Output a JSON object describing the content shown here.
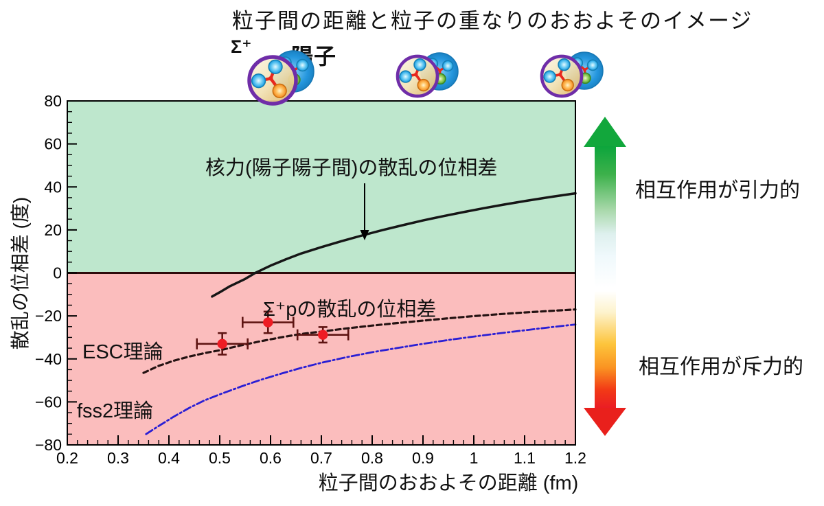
{
  "page": {
    "title": "粒子間の距離と粒子の重なりのおおよそのイメージ"
  },
  "header": {
    "sigma_label": "Σ⁺",
    "proton_label": "陽子",
    "particle_pairs": [
      "large-overlap",
      "medium-overlap",
      "small-overlap"
    ]
  },
  "right_panel": {
    "attractive_label": "相互作用が引力的",
    "repulsive_label": "相互作用が斥力的",
    "attractive_arrow_color": "#12a73c",
    "repulsive_arrow_color": "#e9201c"
  },
  "annotations": {
    "nuclear_curve": "核力(陽子陽子間)の散乱の位相差",
    "sigma_p_points": "Σ⁺pの散乱の位相差",
    "esc_theory": "ESC理論",
    "fss2_theory": "fss2理論"
  },
  "chart_data": {
    "type": "line",
    "xlabel": "粒子間のおおよその距離 (fm)",
    "ylabel": "散乱の位相差 (度)",
    "xlim": [
      0.2,
      1.2
    ],
    "ylim": [
      -80,
      80
    ],
    "x_minor_step": 0.02,
    "y_minor_step": 5,
    "grid": false,
    "x_ticks": [
      {
        "v": 0.2,
        "label": "0.2"
      },
      {
        "v": 0.3,
        "label": "0.3"
      },
      {
        "v": 0.4,
        "label": "0.4"
      },
      {
        "v": 0.5,
        "label": "0.5"
      },
      {
        "v": 0.6,
        "label": "0.6"
      },
      {
        "v": 0.7,
        "label": "0.7"
      },
      {
        "v": 0.8,
        "label": "0.8"
      },
      {
        "v": 0.9,
        "label": "0.9"
      },
      {
        "v": 1.0,
        "label": "1"
      },
      {
        "v": 1.1,
        "label": "1.1"
      },
      {
        "v": 1.2,
        "label": "1.2"
      }
    ],
    "y_ticks": [
      {
        "v": 80,
        "label": "80"
      },
      {
        "v": 60,
        "label": "60"
      },
      {
        "v": 40,
        "label": "40"
      },
      {
        "v": 20,
        "label": "20"
      },
      {
        "v": 0,
        "label": "0"
      },
      {
        "v": -20,
        "label": "−20"
      },
      {
        "v": -40,
        "label": "−40"
      },
      {
        "v": -60,
        "label": "−60"
      },
      {
        "v": -80,
        "label": "−80"
      }
    ],
    "regions": [
      {
        "name": "attractive-zone",
        "from": 0,
        "to": 80,
        "color": "#bee7cd"
      },
      {
        "name": "repulsive-zone",
        "from": -80,
        "to": 0,
        "color": "#fbbdbd"
      }
    ],
    "zero_line_color": "#2e0b0b",
    "series": [
      {
        "name": "核力(陽子陽子間)の散乱の位相差",
        "style": "solid",
        "color": "#161616",
        "width": 3.5,
        "points": [
          [
            0.485,
            -11
          ],
          [
            0.5,
            -9
          ],
          [
            0.52,
            -6.2
          ],
          [
            0.55,
            -2.8
          ],
          [
            0.57,
            0
          ],
          [
            0.6,
            3.4
          ],
          [
            0.63,
            6.3
          ],
          [
            0.66,
            9
          ],
          [
            0.7,
            12
          ],
          [
            0.74,
            14.8
          ],
          [
            0.78,
            17.4
          ],
          [
            0.82,
            19.9
          ],
          [
            0.86,
            22.2
          ],
          [
            0.9,
            24.4
          ],
          [
            0.94,
            26.4
          ],
          [
            0.98,
            28.3
          ],
          [
            1.02,
            30.1
          ],
          [
            1.06,
            31.8
          ],
          [
            1.1,
            33.4
          ],
          [
            1.15,
            35.3
          ],
          [
            1.2,
            37
          ]
        ]
      },
      {
        "name": "ESC理論",
        "style": "dashed",
        "color": "#241212",
        "width": 3.2,
        "points": [
          [
            0.35,
            -46.5
          ],
          [
            0.38,
            -43.2
          ],
          [
            0.41,
            -40.8
          ],
          [
            0.44,
            -38.9
          ],
          [
            0.47,
            -37.3
          ],
          [
            0.5,
            -36
          ],
          [
            0.54,
            -33.8
          ],
          [
            0.58,
            -31.8
          ],
          [
            0.62,
            -30
          ],
          [
            0.66,
            -28.4
          ],
          [
            0.7,
            -27.3
          ],
          [
            0.75,
            -25.8
          ],
          [
            0.8,
            -24.5
          ],
          [
            0.85,
            -23.3
          ],
          [
            0.9,
            -22.2
          ],
          [
            0.95,
            -21.1
          ],
          [
            1.0,
            -20.1
          ],
          [
            1.05,
            -19.2
          ],
          [
            1.1,
            -18.4
          ],
          [
            1.15,
            -17.7
          ],
          [
            1.2,
            -17
          ]
        ]
      },
      {
        "name": "fss2理論",
        "style": "dashdot",
        "color": "#2a1fd4",
        "width": 2.8,
        "points": [
          [
            0.355,
            -75
          ],
          [
            0.38,
            -71.2
          ],
          [
            0.41,
            -66.8
          ],
          [
            0.44,
            -62.8
          ],
          [
            0.47,
            -59.3
          ],
          [
            0.5,
            -56.5
          ],
          [
            0.54,
            -53
          ],
          [
            0.58,
            -49.8
          ],
          [
            0.62,
            -46.9
          ],
          [
            0.66,
            -44.2
          ],
          [
            0.7,
            -41.8
          ],
          [
            0.75,
            -39.2
          ],
          [
            0.8,
            -36.9
          ],
          [
            0.85,
            -34.9
          ],
          [
            0.9,
            -33
          ],
          [
            0.95,
            -31.2
          ],
          [
            1.0,
            -29.6
          ],
          [
            1.05,
            -28.1
          ],
          [
            1.1,
            -26.7
          ],
          [
            1.15,
            -25.3
          ],
          [
            1.2,
            -24
          ]
        ]
      }
    ],
    "data_points": {
      "name": "Σ⁺pの散乱の位相差",
      "marker_color": "#ee1c24",
      "error_color": "#5e1412",
      "points": [
        {
          "x": 0.505,
          "y": -33,
          "xerr": 0.05,
          "yerr": 5
        },
        {
          "x": 0.595,
          "y": -23,
          "xerr": 0.05,
          "yerr": 5
        },
        {
          "x": 0.703,
          "y": -28.8,
          "xerr": 0.05,
          "yerr": 3.6
        }
      ]
    }
  }
}
